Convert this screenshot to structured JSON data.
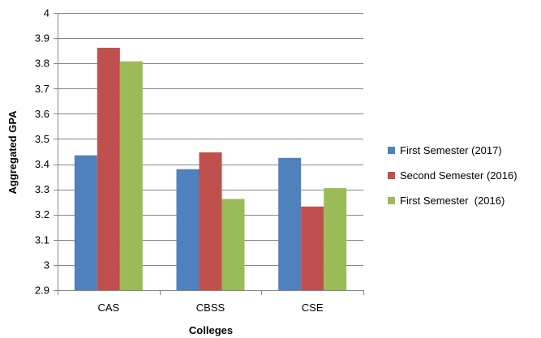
{
  "chart_data": {
    "type": "bar",
    "categories": [
      "CAS",
      "CBSS",
      "CSE"
    ],
    "series": [
      {
        "name": "First Semester (2017)",
        "color": "#4F81BD",
        "values": [
          3.435,
          3.38,
          3.425
        ]
      },
      {
        "name": "Second Semester (2016)",
        "color": "#C0504D",
        "values": [
          3.862,
          3.447,
          3.232
        ]
      },
      {
        "name": "First Semester  (2016)",
        "color": "#9BBB59",
        "values": [
          3.808,
          3.262,
          3.305
        ]
      }
    ],
    "xlabel": "Colleges",
    "ylabel": "Aggregated GPA",
    "ylim": [
      2.9,
      4
    ],
    "yticks": [
      "2.9",
      "3",
      "3.1",
      "3.2",
      "3.3",
      "3.4",
      "3.5",
      "3.6",
      "3.7",
      "3.8",
      "3.9",
      "4"
    ],
    "grid": true,
    "legend_position": "right"
  }
}
